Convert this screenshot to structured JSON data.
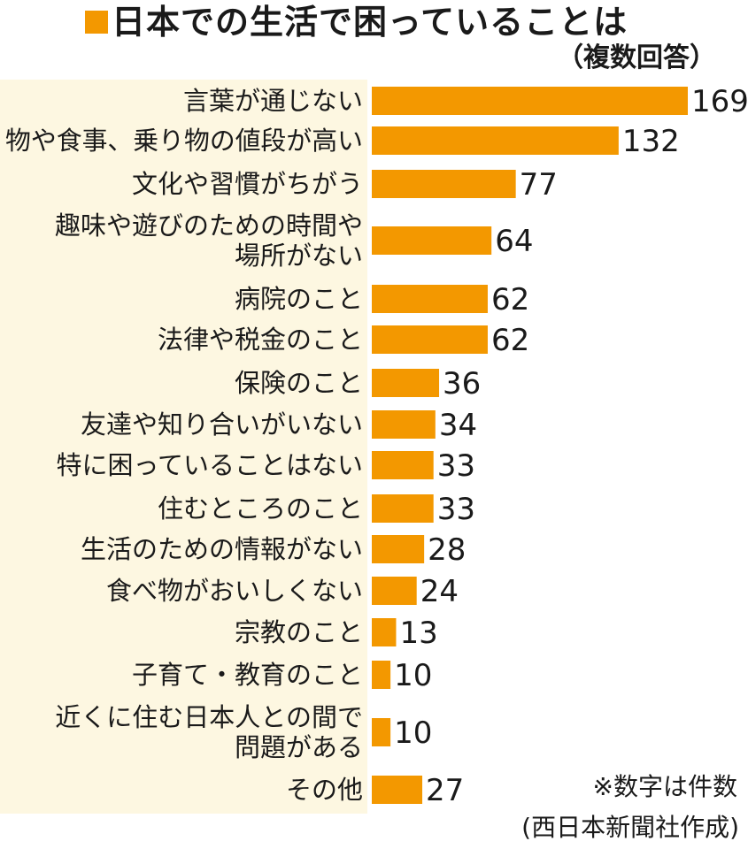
{
  "colors": {
    "accent": "#f39800",
    "label_panel": "#fdf7e1",
    "text": "#1a1a1a"
  },
  "header": {
    "title": "日本での生活で困っていることは",
    "subtitle": "（複数回答）"
  },
  "footer": {
    "note": "※数字は件数",
    "credit": "(西日本新聞社作成)"
  },
  "chart_data": {
    "type": "bar",
    "orientation": "horizontal",
    "grid": false,
    "xlim": [
      0,
      169
    ],
    "categories": [
      [
        "言葉が通じない"
      ],
      [
        "物や食事、乗り物の値段が高い"
      ],
      [
        "文化や習慣がちがう"
      ],
      [
        "趣味や遊びのための時間や",
        "場所がない"
      ],
      [
        "病院のこと"
      ],
      [
        "法律や税金のこと"
      ],
      [
        "保険のこと"
      ],
      [
        "友達や知り合いがいない"
      ],
      [
        "特に困っていることはない"
      ],
      [
        "住むところのこと"
      ],
      [
        "生活のための情報がない"
      ],
      [
        "食べ物がおいしくない"
      ],
      [
        "宗教のこと"
      ],
      [
        "子育て・教育のこと"
      ],
      [
        "近くに住む日本人との間で",
        "問題がある"
      ],
      [
        "その他"
      ]
    ],
    "values": [
      169,
      132,
      77,
      64,
      62,
      62,
      36,
      34,
      33,
      33,
      28,
      24,
      13,
      10,
      10,
      27
    ]
  }
}
